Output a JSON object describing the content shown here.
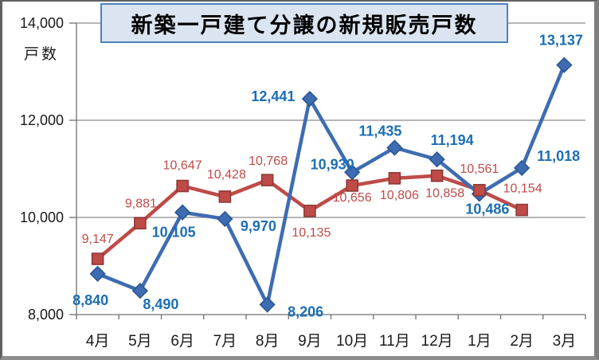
{
  "chart_data": {
    "type": "line",
    "title": "新築一戸建て分譲の新規販売戸数",
    "ylabel": "戸数",
    "categories": [
      "4月",
      "5月",
      "6月",
      "7月",
      "8月",
      "9月",
      "10月",
      "11月",
      "12月",
      "1月",
      "2月",
      "3月"
    ],
    "series": [
      {
        "name": "red-series",
        "marker": "square",
        "color": "#be4b48",
        "marker_edge": "#8e3a37",
        "label_color": "#be4b48",
        "values": [
          9147,
          9881,
          10647,
          10428,
          10768,
          10135,
          10656,
          10806,
          10858,
          10561,
          10154,
          null
        ]
      },
      {
        "name": "blue-series",
        "marker": "diamond",
        "color": "#3e6cb2",
        "marker_edge": "#2b5693",
        "label_color": "#1c6eb4",
        "values": [
          8840,
          8490,
          10105,
          9970,
          8206,
          12441,
          10930,
          11435,
          11194,
          10486,
          11018,
          13137
        ]
      }
    ],
    "ylim": [
      8000,
      14000
    ],
    "ytick_step": 2000,
    "ytick_labels": [
      "8,000",
      "10,000",
      "12,000",
      "14,000"
    ],
    "grid": true,
    "legend": "none",
    "data_labels": true,
    "axis_color": "#707070",
    "grid_color": "#8a8a8a",
    "tick_label_color": "#1a1a1a"
  }
}
